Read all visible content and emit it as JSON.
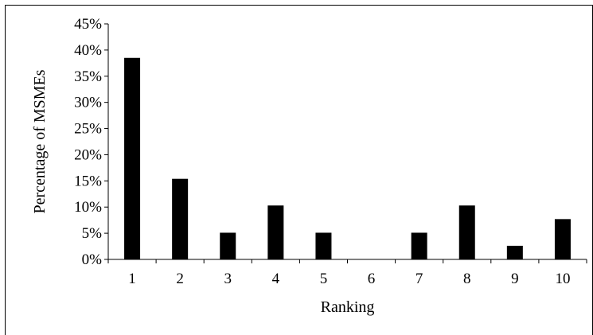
{
  "chart_data": {
    "type": "bar",
    "title": "",
    "xlabel": "Ranking",
    "ylabel": "Percentage of MSMEs",
    "categories": [
      "1",
      "2",
      "3",
      "4",
      "5",
      "6",
      "7",
      "8",
      "9",
      "10"
    ],
    "values": [
      38.5,
      15.4,
      5.1,
      10.3,
      5.1,
      0,
      5.1,
      10.3,
      2.6,
      7.7
    ],
    "ylim": [
      0,
      45
    ],
    "yticks": [
      "0%",
      "5%",
      "10%",
      "15%",
      "20%",
      "25%",
      "30%",
      "35%",
      "40%",
      "45%"
    ],
    "grid": false,
    "legend": "none",
    "bar_color": "#000000"
  }
}
